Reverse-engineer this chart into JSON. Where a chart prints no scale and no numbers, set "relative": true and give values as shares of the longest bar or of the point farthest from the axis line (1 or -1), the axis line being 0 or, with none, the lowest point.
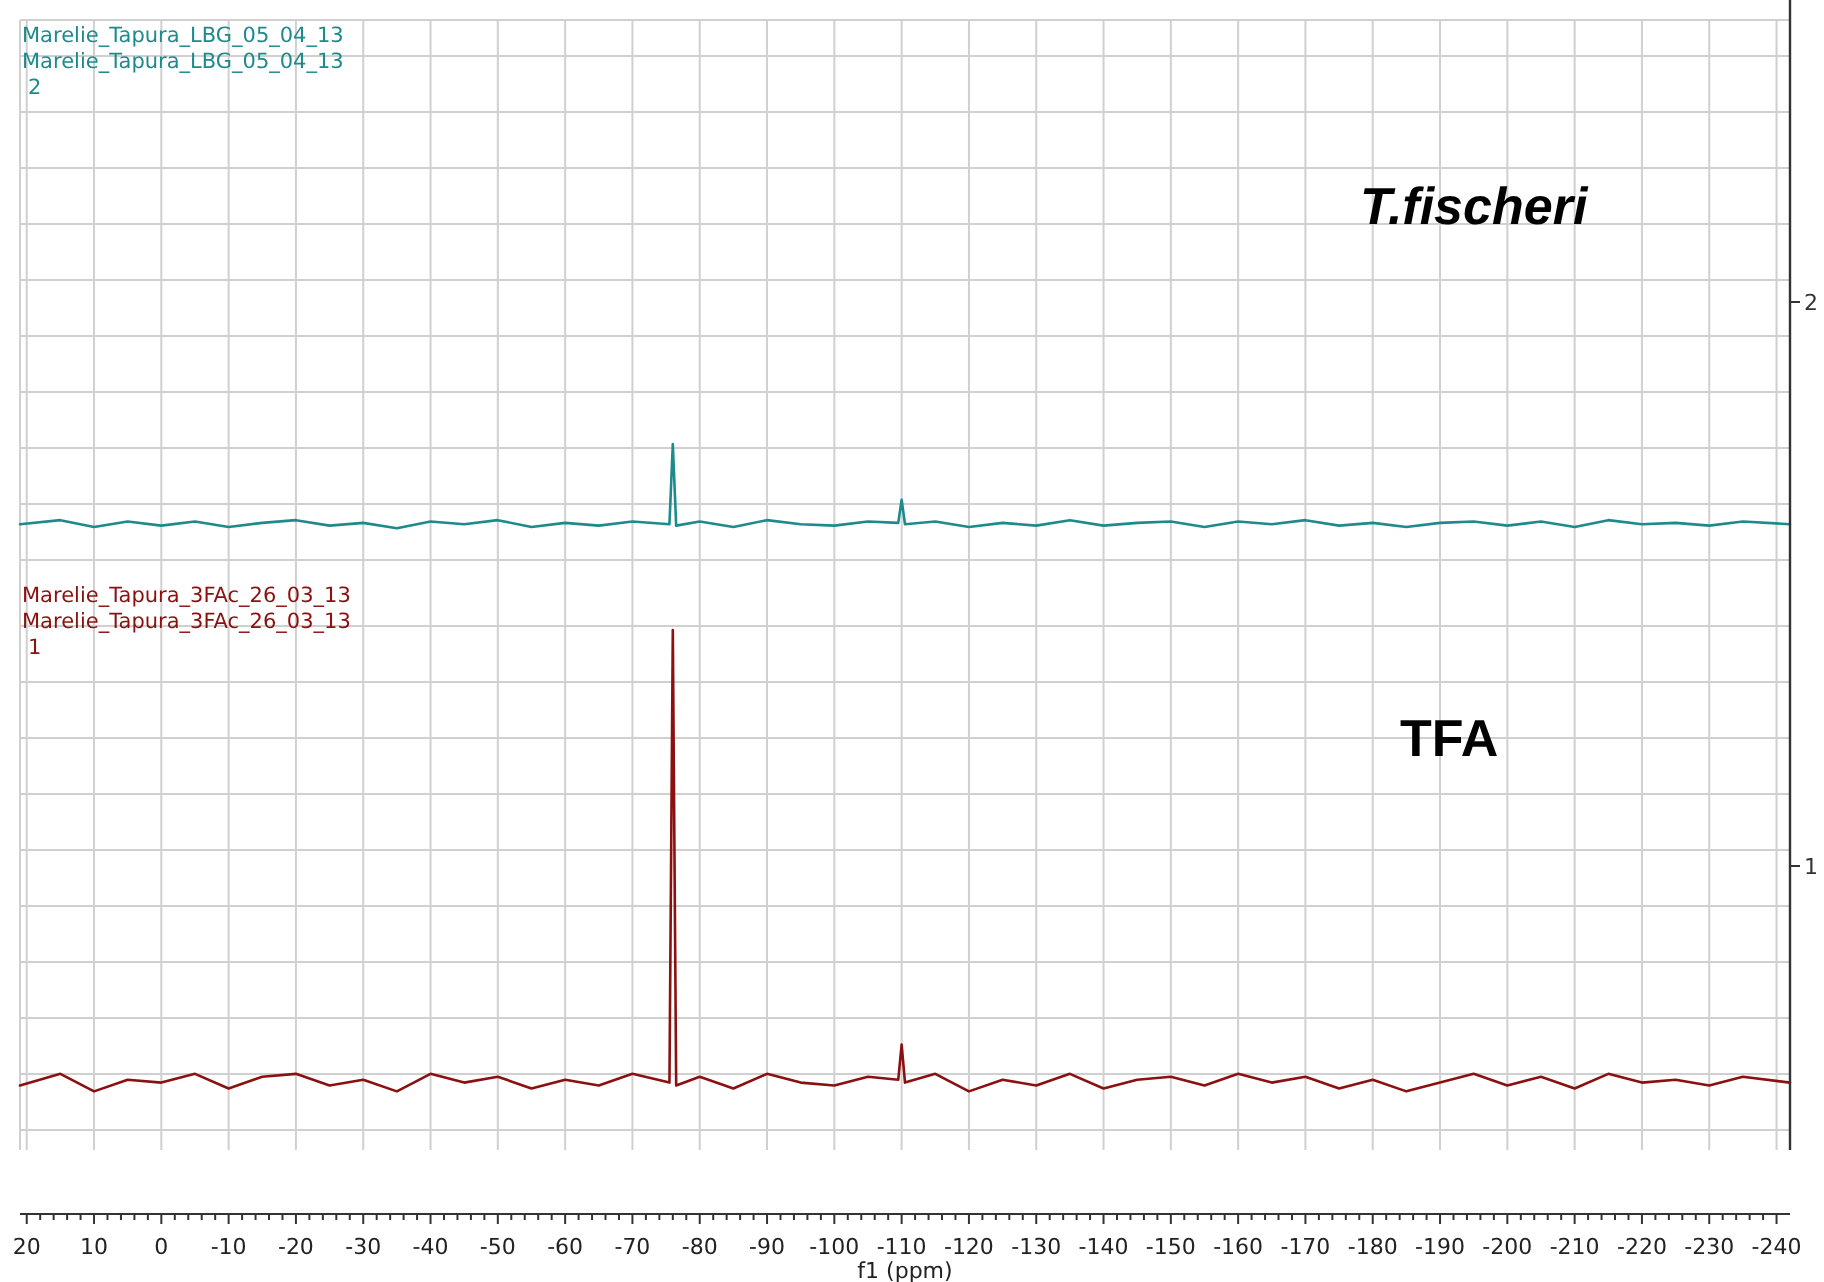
{
  "chart_data": [
    {
      "type": "line",
      "title": "T.fischeri",
      "annotations": [
        "Marelie_Tapura_LBG_05_04_13",
        "Marelie_Tapura_LBG_05_04_13",
        "2",
        "2"
      ],
      "relative": true,
      "grid": true,
      "tick_labels": false,
      "xlim": [
        21,
        -242
      ],
      "xticks": [
        20,
        10,
        0,
        -10,
        -20,
        -30,
        -40,
        -50,
        -60,
        -70,
        -80,
        -90,
        -100,
        -110,
        -120,
        -130,
        -140,
        -150,
        -160,
        -170,
        -180,
        -190,
        -200,
        -210,
        -220,
        -230,
        -240
      ],
      "series": [
        {
          "color": "#1f8a8c",
          "x": [
            21,
            15,
            10,
            5,
            0,
            -5,
            -10,
            -15,
            -20,
            -25,
            -30,
            -35,
            -40,
            -45,
            -50,
            -55,
            -60,
            -65,
            -70,
            -75.5,
            -76,
            -76.5,
            -80,
            -85,
            -90,
            -95,
            -100,
            -105,
            -109.5,
            -110,
            -110.5,
            -115,
            -120,
            -125,
            -130,
            -135,
            -140,
            -145,
            -150,
            -155,
            -160,
            -165,
            -170,
            -175,
            -180,
            -185,
            -190,
            -195,
            -200,
            -205,
            -210,
            -215,
            -220,
            -225,
            -230,
            -235,
            -242
          ],
          "values": [
            0.41,
            0.44,
            0.39,
            0.43,
            0.4,
            0.43,
            0.39,
            0.42,
            0.44,
            0.4,
            0.42,
            0.38,
            0.43,
            0.41,
            0.44,
            0.39,
            0.42,
            0.4,
            0.43,
            0.41,
            1,
            0.4,
            0.43,
            0.39,
            0.44,
            0.41,
            0.4,
            0.43,
            0.42,
            0.59,
            0.41,
            0.43,
            0.39,
            0.42,
            0.4,
            0.44,
            0.4,
            0.42,
            0.43,
            0.39,
            0.43,
            0.41,
            0.44,
            0.4,
            0.42,
            0.39,
            0.42,
            0.43,
            0.4,
            0.43,
            0.39,
            0.44,
            0.41,
            0.42,
            0.4,
            0.43,
            0.41
          ]
        }
      ]
    },
    {
      "type": "line",
      "title": "TFA",
      "annotations": [
        "Marelie_Tapura_3FAc_26_03_13",
        "Marelie_Tapura_3FAc_26_03_13",
        "1",
        "1"
      ],
      "relative": true,
      "grid": true,
      "tick_labels": "x",
      "xlabel": "f1 (ppm)",
      "xlim": [
        21,
        -242
      ],
      "xticks": [
        20,
        10,
        0,
        -10,
        -20,
        -30,
        -40,
        -50,
        -60,
        -70,
        -80,
        -90,
        -100,
        -110,
        -120,
        -130,
        -140,
        -150,
        -160,
        -170,
        -180,
        -190,
        -200,
        -210,
        -220,
        -230,
        -240
      ],
      "series": [
        {
          "color": "#8b1010",
          "x": [
            21,
            15,
            10,
            5,
            0,
            -5,
            -10,
            -15,
            -20,
            -25,
            -30,
            -35,
            -40,
            -45,
            -50,
            -55,
            -60,
            -65,
            -70,
            -75.5,
            -76,
            -76.5,
            -80,
            -85,
            -90,
            -95,
            -100,
            -105,
            -109.5,
            -110,
            -110.5,
            -115,
            -120,
            -125,
            -130,
            -135,
            -140,
            -145,
            -150,
            -155,
            -160,
            -165,
            -170,
            -175,
            -180,
            -185,
            -190,
            -195,
            -200,
            -205,
            -210,
            -215,
            -220,
            -225,
            -230,
            -235,
            -242
          ],
          "values": [
            0.22,
            0.24,
            0.21,
            0.23,
            0.225,
            0.24,
            0.215,
            0.235,
            0.24,
            0.22,
            0.23,
            0.21,
            0.24,
            0.225,
            0.235,
            0.215,
            0.23,
            0.22,
            0.24,
            0.225,
            1,
            0.22,
            0.235,
            0.215,
            0.24,
            0.225,
            0.22,
            0.235,
            0.23,
            0.29,
            0.225,
            0.24,
            0.21,
            0.23,
            0.22,
            0.24,
            0.215,
            0.23,
            0.235,
            0.22,
            0.24,
            0.225,
            0.235,
            0.215,
            0.23,
            0.21,
            0.225,
            0.24,
            0.22,
            0.235,
            0.215,
            0.24,
            0.225,
            0.23,
            0.22,
            0.235,
            0.225
          ]
        }
      ]
    }
  ]
}
